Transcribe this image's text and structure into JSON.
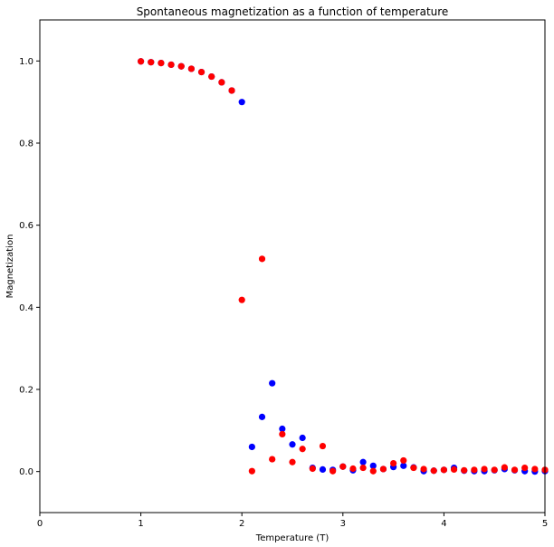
{
  "chart_data": {
    "type": "scatter",
    "title": "Spontaneous magnetization as a function of temperature",
    "xlabel": "Temperature (T)",
    "ylabel": "Magnetization",
    "xlim": [
      0,
      5
    ],
    "ylim": [
      -0.1,
      1.1
    ],
    "xticks": [
      "0",
      "1",
      "2",
      "3",
      "4",
      "5"
    ],
    "yticks": [
      "0.0",
      "0.2",
      "0.4",
      "0.6",
      "0.8",
      "1.0"
    ],
    "grid": false,
    "series": [
      {
        "color": "#0000ff",
        "x": [
          1.0,
          1.1,
          1.2,
          1.3,
          1.4,
          1.5,
          1.6,
          1.7,
          1.8,
          1.9,
          2.0,
          2.1,
          2.2,
          2.3,
          2.4,
          2.5,
          2.6,
          2.7,
          2.8,
          2.9,
          3.0,
          3.1,
          3.2,
          3.3,
          3.4,
          3.5,
          3.6,
          3.7,
          3.8,
          3.9,
          4.0,
          4.1,
          4.2,
          4.3,
          4.4,
          4.5,
          4.6,
          4.7,
          4.8,
          4.9,
          5.0
        ],
        "y": [
          0.999,
          0.997,
          0.995,
          0.991,
          0.987,
          0.981,
          0.973,
          0.962,
          0.948,
          0.928,
          0.9,
          0.06,
          0.133,
          0.215,
          0.104,
          0.066,
          0.082,
          0.009,
          0.005,
          0.004,
          0.012,
          0.003,
          0.023,
          0.014,
          0.006,
          0.011,
          0.014,
          0.01,
          0.001,
          0.002,
          0.004,
          0.009,
          0.002,
          0.001,
          0.001,
          0.003,
          0.006,
          0.003,
          0.001,
          0.0,
          0.001
        ]
      },
      {
        "color": "#ff0000",
        "x": [
          1.0,
          1.1,
          1.2,
          1.3,
          1.4,
          1.5,
          1.6,
          1.7,
          1.8,
          1.9,
          2.0,
          2.1,
          2.2,
          2.3,
          2.4,
          2.5,
          2.6,
          2.7,
          2.8,
          2.9,
          3.0,
          3.1,
          3.2,
          3.3,
          3.4,
          3.5,
          3.6,
          3.7,
          3.8,
          3.9,
          4.0,
          4.1,
          4.2,
          4.3,
          4.4,
          4.5,
          4.6,
          4.7,
          4.8,
          4.9,
          5.0
        ],
        "y": [
          0.999,
          0.997,
          0.995,
          0.991,
          0.987,
          0.981,
          0.973,
          0.962,
          0.948,
          0.928,
          0.418,
          0.001,
          0.518,
          0.03,
          0.091,
          0.023,
          0.055,
          0.007,
          0.062,
          0.001,
          0.012,
          0.007,
          0.009,
          0.001,
          0.006,
          0.02,
          0.027,
          0.009,
          0.006,
          0.002,
          0.004,
          0.005,
          0.003,
          0.004,
          0.006,
          0.004,
          0.01,
          0.004,
          0.009,
          0.006,
          0.004
        ]
      }
    ]
  }
}
